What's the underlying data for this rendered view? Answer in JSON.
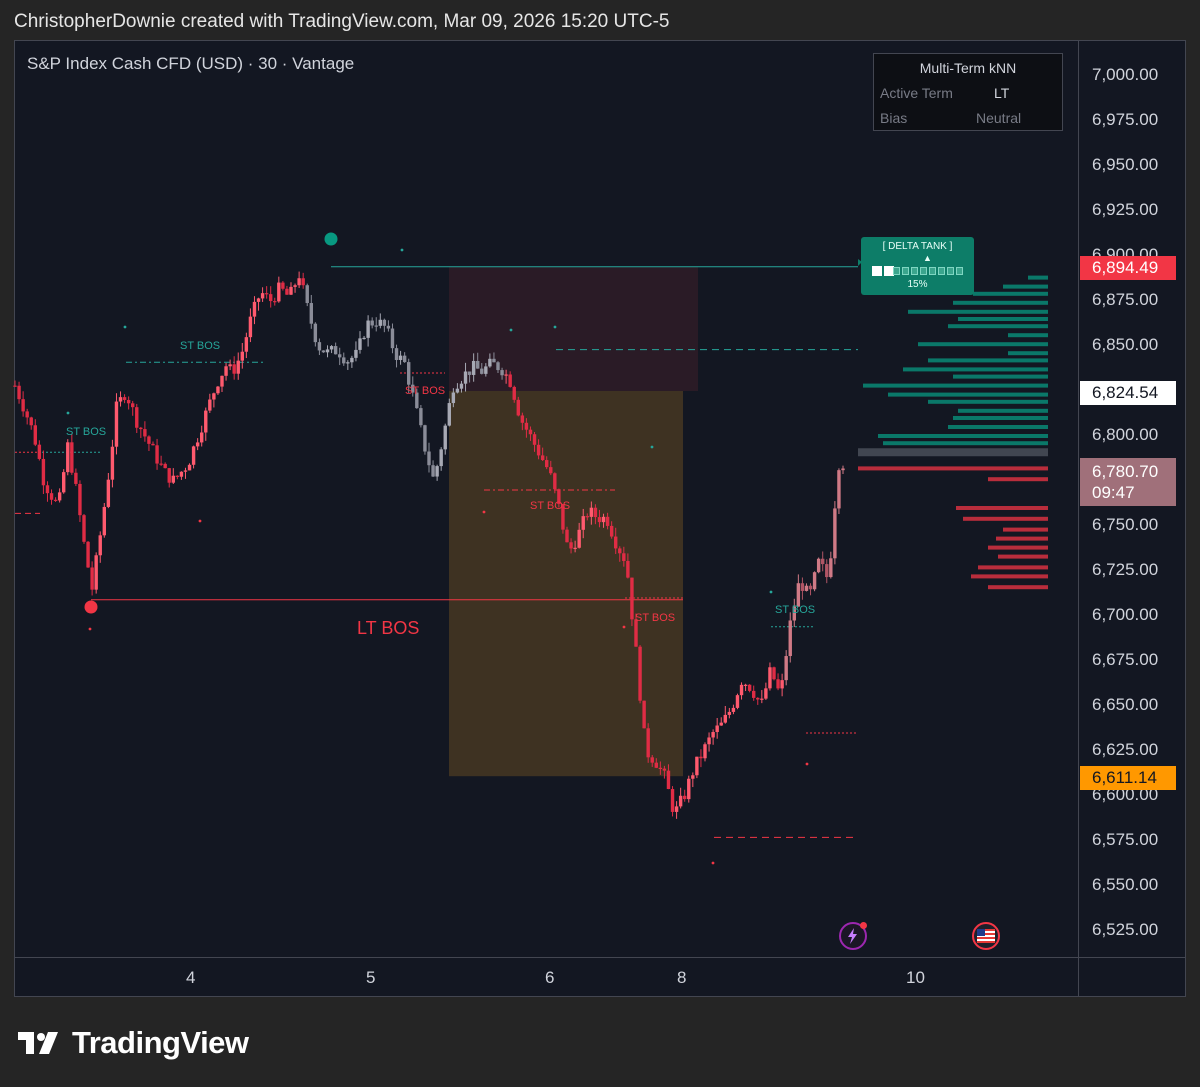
{
  "header": {
    "text": "ChristopherDownie created with TradingView.com, Mar 09, 2026 15:20 UTC-5"
  },
  "symbol": {
    "title": "S&P Index Cash CFD (USD) · 30 · Vantage"
  },
  "knn_panel": {
    "title": "Multi-Term kNN",
    "row1_label": "Active Term",
    "row1_value": "LT",
    "row2_label": "Bias",
    "row2_value": "Neutral"
  },
  "delta_tank": {
    "title": "[ DELTA TANK ]",
    "arrow": "▲",
    "percent_label": "15%",
    "fill": 0.15
  },
  "annotations": {
    "st_bos_1": "ST BOS",
    "st_bos_2": "ST BOS",
    "st_bos_3": "ST BOS",
    "st_bos_4": "ST BOS",
    "st_bos_5": "ST BOS",
    "st_bos_6": "ST BOS",
    "lt_bos": "LT BOS"
  },
  "price_tags": {
    "high": {
      "value": "6,894.49",
      "color": "#f23645"
    },
    "mid": {
      "value": "6,824.54",
      "color": "#ffffff"
    },
    "last": {
      "value": "6,780.70",
      "countdown": "09:47",
      "color": "#a0707a"
    },
    "low": {
      "value": "6,611.14",
      "color": "#ff9800"
    }
  },
  "colors": {
    "up": "#ff5a6e",
    "down": "#e02c45",
    "neutral": "#9aa0b0",
    "bull": "#089981",
    "bear": "#f23645"
  },
  "icons": [
    "lightning-icon",
    "us-flag-icon"
  ],
  "logo": {
    "text": "TradingView"
  },
  "chart_data": {
    "type": "candlestick",
    "title": "S&P Index Cash CFD (USD) · 30 · Vantage",
    "y_ticks": [
      "7,000.00",
      "6,975.00",
      "6,950.00",
      "6,925.00",
      "6,900.00",
      "6,875.00",
      "6,850.00",
      "6,825.00",
      "6,800.00",
      "6,775.00",
      "6,750.00",
      "6,725.00",
      "6,700.00",
      "6,675.00",
      "6,650.00",
      "6,625.00",
      "6,600.00",
      "6,575.00",
      "6,550.00",
      "6,525.00"
    ],
    "x_ticks": [
      "4",
      "5",
      "6",
      "8",
      "10"
    ],
    "ylim": [
      6517,
      7009
    ],
    "close_path": [
      [
        0,
        6828
      ],
      [
        0.02,
        6815
      ],
      [
        0.04,
        6800
      ],
      [
        0.06,
        6775
      ],
      [
        0.08,
        6765
      ],
      [
        0.09,
        6760
      ],
      [
        0.11,
        6795
      ],
      [
        0.12,
        6780
      ],
      [
        0.13,
        6765
      ],
      [
        0.14,
        6745
      ],
      [
        0.16,
        6715
      ],
      [
        0.18,
        6750
      ],
      [
        0.2,
        6790
      ],
      [
        0.21,
        6815
      ],
      [
        0.23,
        6825
      ],
      [
        0.25,
        6810
      ],
      [
        0.27,
        6800
      ],
      [
        0.29,
        6790
      ],
      [
        0.31,
        6780
      ],
      [
        0.33,
        6775
      ],
      [
        0.36,
        6785
      ],
      [
        0.38,
        6800
      ],
      [
        0.4,
        6815
      ],
      [
        0.42,
        6830
      ],
      [
        0.44,
        6840
      ],
      [
        0.45,
        6835
      ],
      [
        0.47,
        6845
      ],
      [
        0.49,
        6865
      ],
      [
        0.51,
        6880
      ],
      [
        0.53,
        6875
      ],
      [
        0.55,
        6882
      ],
      [
        0.57,
        6877
      ],
      [
        0.59,
        6890
      ],
      [
        0.61,
        6868
      ],
      [
        0.63,
        6850
      ],
      [
        0.65,
        6846
      ],
      [
        0.67,
        6848
      ],
      [
        0.69,
        6842
      ],
      [
        0.71,
        6845
      ],
      [
        0.73,
        6862
      ],
      [
        0.75,
        6864
      ],
      [
        0.77,
        6860
      ],
      [
        0.79,
        6846
      ],
      [
        0.81,
        6840
      ],
      [
        0.83,
        6818
      ],
      [
        0.85,
        6795
      ],
      [
        0.87,
        6775
      ],
      [
        0.89,
        6800
      ],
      [
        0.91,
        6828
      ],
      [
        0.93,
        6833
      ],
      [
        0.95,
        6838
      ],
      [
        0.97,
        6836
      ],
      [
        0.99,
        6840
      ],
      [
        1.01,
        6838
      ],
      [
        1.03,
        6830
      ],
      [
        1.05,
        6810
      ],
      [
        1.07,
        6800
      ],
      [
        1.09,
        6790
      ],
      [
        1.11,
        6780
      ],
      [
        1.13,
        6760
      ],
      [
        1.15,
        6735
      ],
      [
        1.17,
        6745
      ],
      [
        1.19,
        6758
      ],
      [
        1.21,
        6755
      ],
      [
        1.23,
        6754
      ],
      [
        1.25,
        6740
      ],
      [
        1.27,
        6730
      ],
      [
        1.29,
        6680
      ],
      [
        1.31,
        6625
      ],
      [
        1.33,
        6620
      ],
      [
        1.35,
        6610
      ],
      [
        1.37,
        6590
      ],
      [
        1.39,
        6600
      ],
      [
        1.41,
        6615
      ],
      [
        1.43,
        6625
      ],
      [
        1.45,
        6635
      ],
      [
        1.47,
        6640
      ],
      [
        1.49,
        6650
      ],
      [
        1.51,
        6665
      ],
      [
        1.53,
        6660
      ],
      [
        1.55,
        6650
      ],
      [
        1.57,
        6670
      ],
      [
        1.59,
        6655
      ],
      [
        1.61,
        6695
      ],
      [
        1.63,
        6720
      ],
      [
        1.65,
        6710
      ],
      [
        1.67,
        6730
      ],
      [
        1.69,
        6720
      ],
      [
        1.71,
        6785
      ],
      [
        1.72,
        6785
      ]
    ]
  }
}
